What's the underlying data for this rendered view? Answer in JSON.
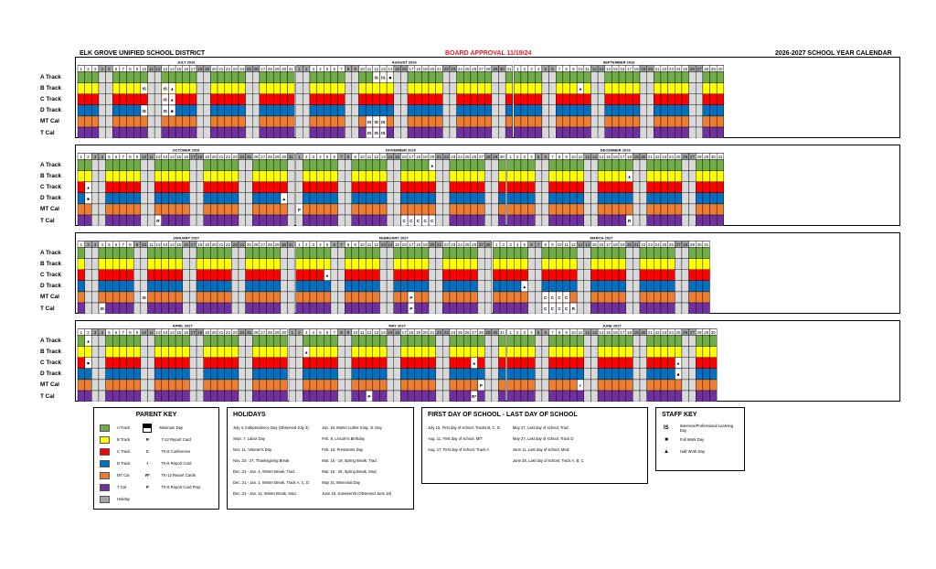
{
  "header": {
    "district": "ELK GROVE UNIFIED SCHOOL DISTRICT",
    "approval": "BOARD APPROVAL 11/19/24",
    "title": "2026-2027 SCHOOL YEAR CALENDAR"
  },
  "colors": {
    "A": "#70ad47",
    "B": "#ffff00",
    "C": "#ff0000",
    "D": "#0070c0",
    "MT": "#ed7d31",
    "T": "#7030a0",
    "holiday": "#a6a6a6",
    "weekend": "#d9d9d9",
    "white": "#ffffff"
  },
  "rows": [
    "A Track",
    "B Track",
    "C Track",
    "D Track",
    "MT Cal",
    "T Cal"
  ],
  "panels": [
    {
      "months": [
        {
          "name": "JULY 2026",
          "days": 31,
          "start": 3
        },
        {
          "name": "AUGUST 2026",
          "days": 31,
          "start": 6
        },
        {
          "name": "SEPTEMBER 2026",
          "days": 30,
          "start": 2
        }
      ]
    },
    {
      "months": [
        {
          "name": "OCTOBER 2026",
          "days": 31,
          "start": 4
        },
        {
          "name": "NOVEMBER 2026",
          "days": 30,
          "start": 0
        },
        {
          "name": "DECEMBER 2026",
          "days": 31,
          "start": 2
        }
      ]
    },
    {
      "months": [
        {
          "name": "JANUARY 2027",
          "days": 31,
          "start": 5
        },
        {
          "name": "FEBRUARY 2027",
          "days": 28,
          "start": 1
        },
        {
          "name": "MARCH 2027",
          "days": 31,
          "start": 1
        }
      ]
    },
    {
      "months": [
        {
          "name": "APRIL 2027",
          "days": 30,
          "start": 4
        },
        {
          "name": "MAY 2027",
          "days": 31,
          "start": 6
        },
        {
          "name": "JUNE 2027",
          "days": 30,
          "start": 2
        }
      ]
    }
  ],
  "marks": [
    {
      "p": 0,
      "m": 0,
      "d": 10,
      "r": 1,
      "t": "IS"
    },
    {
      "p": 0,
      "m": 0,
      "d": 13,
      "r": 1,
      "t": "IS"
    },
    {
      "p": 0,
      "m": 0,
      "d": 10,
      "r": 3,
      "t": "IS"
    },
    {
      "p": 0,
      "m": 0,
      "d": 13,
      "r": 3,
      "t": "IS"
    },
    {
      "p": 0,
      "m": 0,
      "d": 13,
      "r": 2,
      "t": "IS"
    },
    {
      "p": 0,
      "m": 0,
      "d": 14,
      "r": 1,
      "t": "▲"
    },
    {
      "p": 0,
      "m": 0,
      "d": 14,
      "r": 2,
      "t": "▲"
    },
    {
      "p": 0,
      "m": 0,
      "d": 14,
      "r": 3,
      "t": "■"
    },
    {
      "p": 0,
      "m": 1,
      "d": 12,
      "r": 0,
      "t": "IS"
    },
    {
      "p": 0,
      "m": 1,
      "d": 13,
      "r": 0,
      "t": "IS"
    },
    {
      "p": 0,
      "m": 1,
      "d": 14,
      "r": 0,
      "t": "■"
    },
    {
      "p": 0,
      "m": 1,
      "d": 11,
      "r": 4,
      "t": "IS"
    },
    {
      "p": 0,
      "m": 1,
      "d": 12,
      "r": 4,
      "t": "IS"
    },
    {
      "p": 0,
      "m": 1,
      "d": 13,
      "r": 4,
      "t": "IS"
    },
    {
      "p": 0,
      "m": 1,
      "d": 11,
      "r": 5,
      "t": "IS"
    },
    {
      "p": 0,
      "m": 1,
      "d": 12,
      "r": 5,
      "t": "IS"
    },
    {
      "p": 0,
      "m": 1,
      "d": 13,
      "r": 5,
      "t": "IS"
    },
    {
      "p": 0,
      "m": 2,
      "d": 10,
      "r": 1,
      "t": "▲"
    },
    {
      "p": 1,
      "m": 0,
      "d": 2,
      "r": 2,
      "t": "▲"
    },
    {
      "p": 1,
      "m": 0,
      "d": 2,
      "r": 3,
      "t": "■"
    },
    {
      "p": 1,
      "m": 0,
      "d": 30,
      "r": 3,
      "t": "▲"
    },
    {
      "p": 1,
      "m": 0,
      "d": 12,
      "r": 5,
      "t": "R"
    },
    {
      "p": 1,
      "m": 1,
      "d": 20,
      "r": 0,
      "t": "▲"
    },
    {
      "p": 1,
      "m": 1,
      "d": 16,
      "r": 5,
      "t": "C"
    },
    {
      "p": 1,
      "m": 1,
      "d": 17,
      "r": 5,
      "t": "C"
    },
    {
      "p": 1,
      "m": 1,
      "d": 18,
      "r": 5,
      "t": "C"
    },
    {
      "p": 1,
      "m": 1,
      "d": 19,
      "r": 5,
      "t": "C"
    },
    {
      "p": 1,
      "m": 1,
      "d": 20,
      "r": 5,
      "t": "C"
    },
    {
      "p": 1,
      "m": 1,
      "d": 1,
      "r": 4,
      "t": "P"
    },
    {
      "p": 1,
      "m": 2,
      "d": 18,
      "r": 1,
      "t": "▲"
    },
    {
      "p": 1,
      "m": 2,
      "d": 18,
      "r": 5,
      "t": "R"
    },
    {
      "p": 2,
      "m": 0,
      "d": 10,
      "r": 4,
      "t": "IS"
    },
    {
      "p": 2,
      "m": 0,
      "d": 4,
      "r": 5,
      "t": "IS"
    },
    {
      "p": 2,
      "m": 1,
      "d": 5,
      "r": 2,
      "t": "▲"
    },
    {
      "p": 2,
      "m": 1,
      "d": 17,
      "r": 4,
      "t": "P"
    },
    {
      "p": 2,
      "m": 1,
      "d": 17,
      "r": 5,
      "t": "P"
    },
    {
      "p": 2,
      "m": 2,
      "d": 5,
      "r": 3,
      "t": "▲"
    },
    {
      "p": 2,
      "m": 2,
      "d": 8,
      "r": 4,
      "t": "C"
    },
    {
      "p": 2,
      "m": 2,
      "d": 9,
      "r": 4,
      "t": "C"
    },
    {
      "p": 2,
      "m": 2,
      "d": 10,
      "r": 4,
      "t": "C"
    },
    {
      "p": 2,
      "m": 2,
      "d": 11,
      "r": 4,
      "t": "C"
    },
    {
      "p": 2,
      "m": 2,
      "d": 8,
      "r": 5,
      "t": "C"
    },
    {
      "p": 2,
      "m": 2,
      "d": 9,
      "r": 5,
      "t": "C"
    },
    {
      "p": 2,
      "m": 2,
      "d": 10,
      "r": 5,
      "t": "C"
    },
    {
      "p": 2,
      "m": 2,
      "d": 11,
      "r": 5,
      "t": "C"
    },
    {
      "p": 2,
      "m": 2,
      "d": 12,
      "r": 5,
      "t": "R"
    },
    {
      "p": 3,
      "m": 0,
      "d": 2,
      "r": 0,
      "t": "▲"
    },
    {
      "p": 3,
      "m": 0,
      "d": 2,
      "r": 2,
      "t": "■"
    },
    {
      "p": 3,
      "m": 1,
      "d": 3,
      "r": 1,
      "t": "▲"
    },
    {
      "p": 3,
      "m": 1,
      "d": 12,
      "r": 5,
      "t": "P"
    },
    {
      "p": 3,
      "m": 1,
      "d": 27,
      "r": 2,
      "t": "▲"
    },
    {
      "p": 3,
      "m": 1,
      "d": 28,
      "r": 4,
      "t": "P"
    },
    {
      "p": 3,
      "m": 1,
      "d": 27,
      "r": 5,
      "t": "R*"
    },
    {
      "p": 3,
      "m": 2,
      "d": 11,
      "r": 4,
      "t": "r"
    },
    {
      "p": 3,
      "m": 2,
      "d": 25,
      "r": 2,
      "t": "▲"
    },
    {
      "p": 3,
      "m": 2,
      "d": 25,
      "r": 3,
      "t": "■"
    }
  ],
  "legend": {
    "parent": {
      "title": "PARENT KEY",
      "swatches": [
        "A Track",
        "B Track",
        "C Track",
        "D Track",
        "MT Cal",
        "T Cal",
        "Holiday"
      ],
      "codes": [
        {
          "code": "",
          "label": "Minimum Day"
        },
        {
          "code": "R",
          "label": "7-12 Report Card"
        },
        {
          "code": "C",
          "label": "TK-6 Conference"
        },
        {
          "code": "r",
          "label": "TK-6 Report Card"
        },
        {
          "code": "R*",
          "label": "TK-12 Report Cards"
        },
        {
          "code": "P",
          "label": "TK-6 Report Card Prep"
        }
      ]
    },
    "holidays": {
      "title": "HOLIDAYS",
      "col1": [
        "July 4, Independence Day (Observed July 3)",
        "Sept. 7, Labor Day",
        "Nov. 11, Veteran's Day",
        "Nov. 23 - 27, Thanksgiving Break",
        "Dec. 21 - Jan. 4, Winter Break, Trad.",
        "Dec. 21 - Jan. 1, Winter Break, Track A, C, D",
        "Dec. 21 - Jan. 11, Winter Break, Mod."
      ],
      "col2": [
        "Jan. 18, Martin Luther King, Jr. Day",
        "Feb. 8, Lincoln's Birthday",
        "Feb. 15, Presidents Day",
        "Mar. 15 - 19, Spring Break, Trad.",
        "Mar. 15 - 26, Spring Break, Mod.",
        "May 31, Memorial Day",
        "June 19, Juneteenth (Observed June 18)"
      ]
    },
    "firstlast": {
      "title": "FIRST DAY OF SCHOOL - LAST DAY OF SCHOOL",
      "col1": [
        "July 15, First day of school, Tracks B, C, D",
        "Aug. 11, First day of school, M/T",
        "Aug. 17, First day of school, Track A",
        ""
      ],
      "col2": [
        "May 27, Last day of school, Trad.",
        "May 27, Last day of school, Track D",
        "June 11, Last day of school, Mod.",
        "June 25, Last day of school, Track A, B, C"
      ]
    },
    "staff": {
      "title": "STAFF KEY",
      "items": [
        {
          "code": "IS",
          "label": "Inservice/Professional Learning Day"
        },
        {
          "code": "■",
          "label": "Full Work Day"
        },
        {
          "code": "▲",
          "label": "Half Work Day"
        }
      ]
    }
  }
}
